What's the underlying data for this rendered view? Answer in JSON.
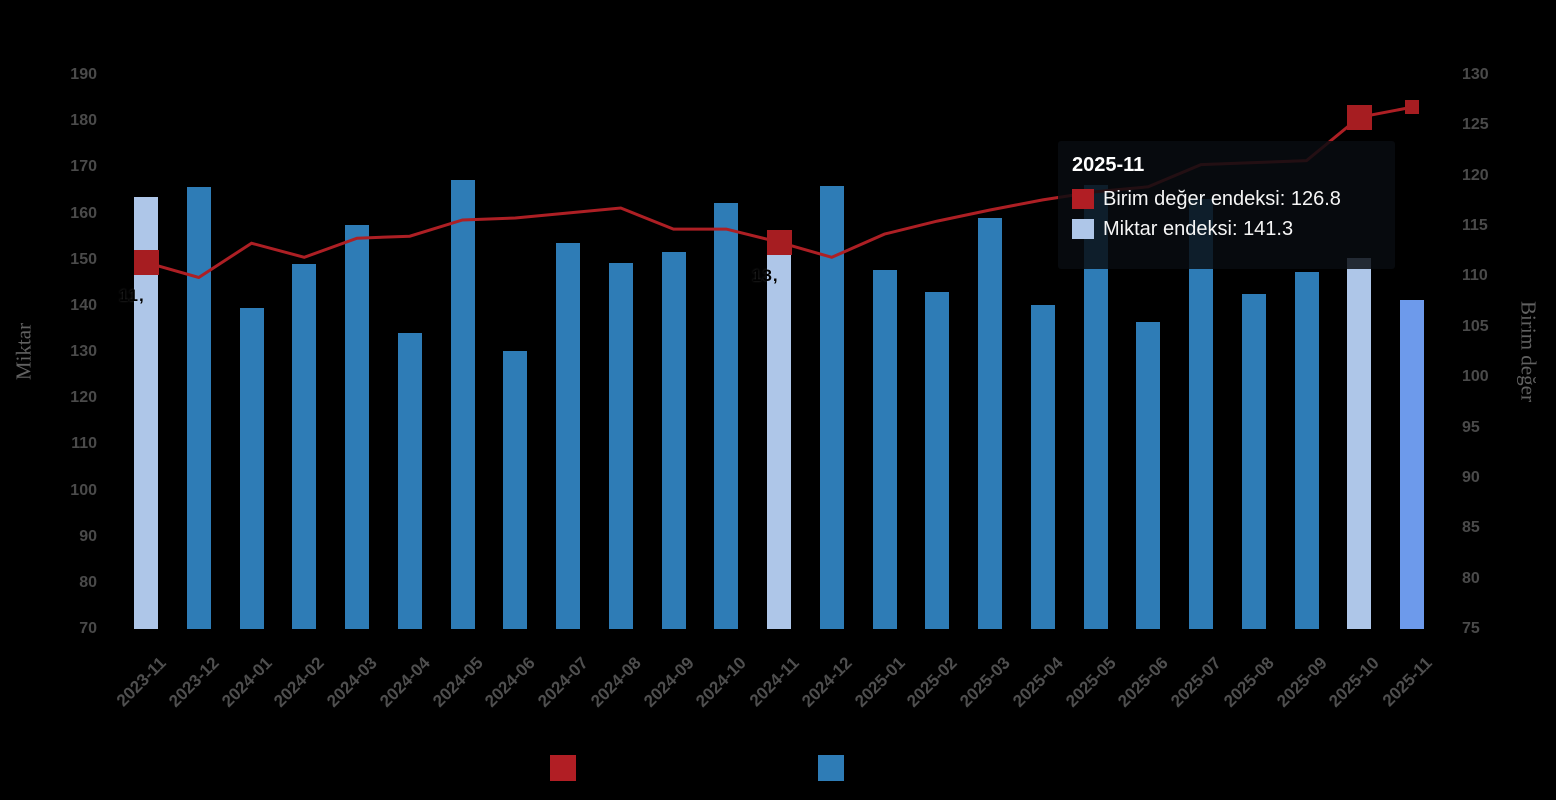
{
  "colors": {
    "background": "#000000",
    "bar_default": "#2e7cb6",
    "bar_highlight": "#aec6e8",
    "bar_hover": "#6d9aeb",
    "line": "#ad1f24",
    "marker": "#a61d21",
    "legend_red": "#b11e24",
    "legend_blue": "#2e7cb6",
    "tick_text": "#4a4a4a",
    "axis_title_text": "#616161",
    "tooltip_text": "#ffffff"
  },
  "chart_data": {
    "type": "bar",
    "subtype": "bar+line combo, dual y-axis",
    "categories": [
      "2023-11",
      "2023-12",
      "2024-01",
      "2024-02",
      "2024-03",
      "2024-04",
      "2024-05",
      "2024-06",
      "2024-07",
      "2024-08",
      "2024-09",
      "2024-10",
      "2024-11",
      "2024-12",
      "2025-01",
      "2025-02",
      "2025-03",
      "2025-04",
      "2025-05",
      "2025-06",
      "2025-07",
      "2025-08",
      "2025-09",
      "2025-10",
      "2025-11"
    ],
    "series": [
      {
        "name": "Miktar endeksi",
        "type": "bar",
        "axis": "left",
        "values": [
          163.6,
          165.8,
          139.5,
          149.0,
          157.5,
          134.2,
          167.3,
          130.3,
          153.7,
          149.2,
          151.6,
          162.2,
          151.4,
          165.9,
          147.8,
          143.0,
          159.0,
          140.2,
          166.2,
          136.6,
          163.1,
          142.5,
          147.3,
          150.4,
          141.3
        ]
      },
      {
        "name": "Birim değer endeksi",
        "type": "line",
        "axis": "right",
        "values": [
          111.4,
          109.9,
          113.3,
          111.9,
          113.8,
          114.0,
          115.6,
          115.8,
          116.3,
          116.8,
          114.7,
          114.7,
          113.4,
          111.9,
          114.2,
          115.5,
          116.6,
          117.6,
          118.4,
          118.9,
          121.1,
          121.3,
          121.5,
          125.8,
          126.8
        ]
      }
    ],
    "left_axis": {
      "title": "Miktar",
      "min": 70,
      "max": 190,
      "step": 10
    },
    "right_axis": {
      "title": "Birim değer",
      "min": 75,
      "max": 130,
      "step": 5
    },
    "grid": false,
    "legend_position": "bottom",
    "bar_styles": {
      "2023-11": "highlight",
      "2024-11": "highlight",
      "2025-10": "highlight",
      "2025-11": "hover"
    },
    "line_markers": [
      {
        "category": "2023-11",
        "size": 25
      },
      {
        "category": "2024-11",
        "size": 25
      },
      {
        "category": "2025-10",
        "size": 25
      },
      {
        "category": "2025-11",
        "size": 14
      }
    ],
    "point_labels": [
      {
        "category": "2023-11",
        "text": "11,"
      },
      {
        "category": "2024-11",
        "text": "13,"
      }
    ]
  },
  "tooltip": {
    "title": "2025-11",
    "rows": [
      {
        "label": "Birim değer endeksi",
        "value": "126.8",
        "swatch": "#b11e24"
      },
      {
        "label": "Miktar endeksi",
        "value": "141.3",
        "swatch": "#aec6e8"
      }
    ]
  },
  "legend": {
    "items": [
      {
        "label": "Birim değer endeksi",
        "swatch": "#b11e24"
      },
      {
        "label": "Miktar endeksi",
        "swatch": "#2e7cb6"
      }
    ]
  }
}
